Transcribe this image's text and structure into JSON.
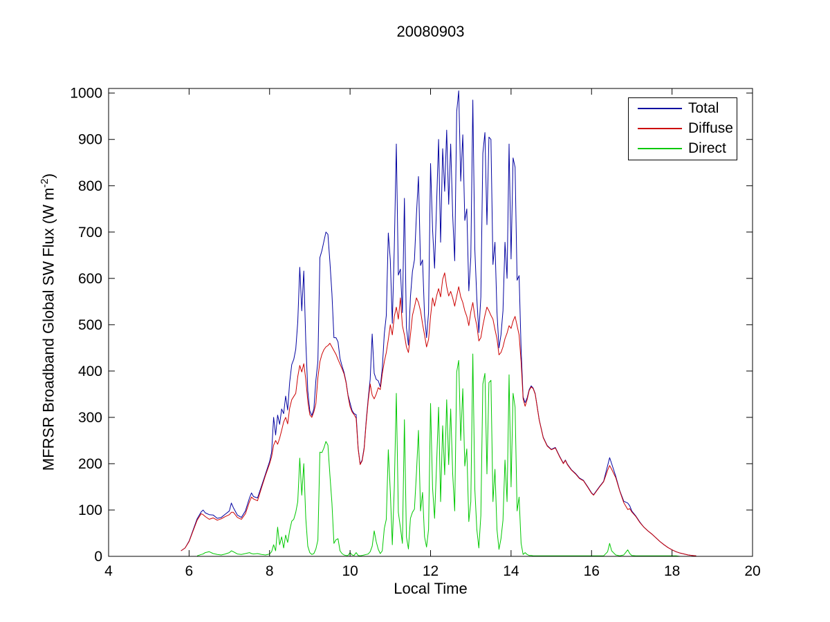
{
  "figure": {
    "background": "#ffffff",
    "axis_color": "#000000"
  },
  "chart_data": {
    "type": "line",
    "title": "20080903",
    "xlabel": "Local Time",
    "ylabel_prefix": "MFRSR Broadband Global SW Flux (W m",
    "ylabel_sup": "-2",
    "ylabel_suffix": ")",
    "xlim": [
      4,
      20
    ],
    "ylim": [
      0,
      1010
    ],
    "xticks": [
      4,
      6,
      8,
      10,
      12,
      14,
      16,
      18,
      20
    ],
    "yticks": [
      0,
      100,
      200,
      300,
      400,
      500,
      600,
      700,
      800,
      900,
      1000
    ],
    "grid": false,
    "legend_position": "top-right",
    "series_meta": [
      {
        "name": "Total",
        "color": "#0000A0"
      },
      {
        "name": "Diffuse",
        "color": "#CC0000"
      },
      {
        "name": "Direct",
        "color": "#00C800"
      }
    ],
    "columns": [
      "local_time_h",
      "total",
      "diffuse",
      "direct"
    ],
    "rows": [
      [
        5.8,
        12,
        12,
        null
      ],
      [
        5.9,
        18,
        18,
        null
      ],
      [
        6.0,
        33,
        32,
        null
      ],
      [
        6.1,
        57,
        55,
        null
      ],
      [
        6.2,
        81,
        78,
        1
      ],
      [
        6.3,
        96,
        92,
        4
      ],
      [
        6.35,
        100,
        90,
        5
      ],
      [
        6.4,
        94,
        86,
        8
      ],
      [
        6.5,
        90,
        80,
        10
      ],
      [
        6.6,
        89,
        83,
        6
      ],
      [
        6.7,
        82,
        78,
        4
      ],
      [
        6.8,
        84,
        81,
        3
      ],
      [
        6.9,
        91,
        86,
        5
      ],
      [
        7.0,
        98,
        90,
        8
      ],
      [
        7.05,
        115,
        95,
        12
      ],
      [
        7.1,
        105,
        95,
        10
      ],
      [
        7.2,
        89,
        84,
        5
      ],
      [
        7.3,
        84,
        80,
        4
      ],
      [
        7.4,
        98,
        92,
        6
      ],
      [
        7.5,
        126,
        118,
        8
      ],
      [
        7.55,
        137,
        128,
        6
      ],
      [
        7.6,
        129,
        124,
        5
      ],
      [
        7.7,
        126,
        120,
        6
      ],
      [
        7.8,
        152,
        148,
        4
      ],
      [
        7.9,
        178,
        175,
        3
      ],
      [
        8.0,
        205,
        200,
        5
      ],
      [
        8.05,
        225,
        215,
        10
      ],
      [
        8.1,
        300,
        240,
        25
      ],
      [
        8.15,
        262,
        250,
        12
      ],
      [
        8.2,
        305,
        242,
        63
      ],
      [
        8.25,
        285,
        255,
        25
      ],
      [
        8.3,
        318,
        272,
        42
      ],
      [
        8.35,
        308,
        290,
        18
      ],
      [
        8.4,
        346,
        300,
        46
      ],
      [
        8.45,
        316,
        286,
        30
      ],
      [
        8.5,
        376,
        320,
        56
      ],
      [
        8.55,
        414,
        338,
        76
      ],
      [
        8.6,
        425,
        345,
        80
      ],
      [
        8.65,
        447,
        352,
        95
      ],
      [
        8.7,
        506,
        388,
        118
      ],
      [
        8.75,
        624,
        412,
        212
      ],
      [
        8.8,
        530,
        398,
        132
      ],
      [
        8.85,
        616,
        416,
        200
      ],
      [
        8.9,
        464,
        382,
        82
      ],
      [
        8.95,
        357,
        335,
        22
      ],
      [
        9.0,
        314,
        306,
        8
      ],
      [
        9.05,
        304,
        300,
        4
      ],
      [
        9.1,
        318,
        312,
        6
      ],
      [
        9.15,
        380,
        330,
        16
      ],
      [
        9.2,
        421,
        386,
        35
      ],
      [
        9.25,
        645,
        420,
        225
      ],
      [
        9.3,
        660,
        436,
        224
      ],
      [
        9.35,
        680,
        446,
        234
      ],
      [
        9.4,
        700,
        452,
        248
      ],
      [
        9.45,
        695,
        455,
        240
      ],
      [
        9.5,
        635,
        460,
        175
      ],
      [
        9.55,
        567,
        452,
        115
      ],
      [
        9.6,
        472,
        444,
        28
      ],
      [
        9.65,
        472,
        436,
        36
      ],
      [
        9.7,
        463,
        425,
        38
      ],
      [
        9.75,
        427,
        415,
        12
      ],
      [
        9.8,
        411,
        405,
        6
      ],
      [
        9.85,
        397,
        394,
        3
      ],
      [
        9.9,
        377,
        375,
        2
      ],
      [
        9.95,
        348,
        346,
        2
      ],
      [
        10.0,
        331,
        323,
        8
      ],
      [
        10.05,
        315,
        312,
        3
      ],
      [
        10.1,
        308,
        306,
        2
      ],
      [
        10.15,
        306,
        298,
        8
      ],
      [
        10.2,
        234,
        232,
        2
      ],
      [
        10.25,
        199,
        198,
        1
      ],
      [
        10.3,
        208,
        206,
        2
      ],
      [
        10.35,
        235,
        232,
        3
      ],
      [
        10.4,
        292,
        288,
        4
      ],
      [
        10.45,
        340,
        335,
        5
      ],
      [
        10.5,
        382,
        372,
        10
      ],
      [
        10.55,
        480,
        348,
        22
      ],
      [
        10.6,
        395,
        340,
        55
      ],
      [
        10.65,
        382,
        350,
        32
      ],
      [
        10.7,
        379,
        364,
        15
      ],
      [
        10.75,
        366,
        360,
        6
      ],
      [
        10.8,
        406,
        394,
        12
      ],
      [
        10.85,
        480,
        420,
        60
      ],
      [
        10.9,
        520,
        440,
        80
      ],
      [
        10.95,
        698,
        468,
        230
      ],
      [
        11.0,
        640,
        500,
        140
      ],
      [
        11.05,
        503,
        478,
        25
      ],
      [
        11.1,
        668,
        518,
        150
      ],
      [
        11.15,
        890,
        538,
        352
      ],
      [
        11.2,
        607,
        512,
        95
      ],
      [
        11.25,
        620,
        558,
        62
      ],
      [
        11.3,
        526,
        498,
        28
      ],
      [
        11.35,
        773,
        478,
        295
      ],
      [
        11.4,
        494,
        452,
        42
      ],
      [
        11.45,
        456,
        440,
        16
      ],
      [
        11.5,
        560,
        478,
        82
      ],
      [
        11.55,
        615,
        520,
        95
      ],
      [
        11.6,
        640,
        538,
        102
      ],
      [
        11.65,
        738,
        558,
        180
      ],
      [
        11.7,
        820,
        548,
        272
      ],
      [
        11.75,
        628,
        530,
        98
      ],
      [
        11.8,
        640,
        502,
        138
      ],
      [
        11.85,
        520,
        478,
        42
      ],
      [
        11.9,
        472,
        452,
        20
      ],
      [
        11.95,
        526,
        468,
        58
      ],
      [
        12.0,
        848,
        518,
        330
      ],
      [
        12.05,
        706,
        558,
        148
      ],
      [
        12.1,
        622,
        540,
        82
      ],
      [
        12.15,
        760,
        562,
        198
      ],
      [
        12.2,
        900,
        578,
        322
      ],
      [
        12.25,
        678,
        560,
        118
      ],
      [
        12.3,
        880,
        598,
        282
      ],
      [
        12.35,
        788,
        612,
        176
      ],
      [
        12.4,
        920,
        582,
        338
      ],
      [
        12.45,
        760,
        562,
        198
      ],
      [
        12.5,
        890,
        572,
        318
      ],
      [
        12.55,
        736,
        558,
        178
      ],
      [
        12.6,
        638,
        540,
        98
      ],
      [
        12.65,
        960,
        562,
        398
      ],
      [
        12.7,
        1005,
        582,
        423
      ],
      [
        12.75,
        810,
        560,
        250
      ],
      [
        12.8,
        910,
        548,
        362
      ],
      [
        12.85,
        725,
        530,
        195
      ],
      [
        12.9,
        750,
        518,
        232
      ],
      [
        12.95,
        573,
        498,
        75
      ],
      [
        13.0,
        646,
        528,
        118
      ],
      [
        13.05,
        985,
        548,
        437
      ],
      [
        13.1,
        663,
        518,
        145
      ],
      [
        13.15,
        556,
        498,
        58
      ],
      [
        13.2,
        483,
        465,
        18
      ],
      [
        13.25,
        560,
        472,
        88
      ],
      [
        13.3,
        870,
        498,
        372
      ],
      [
        13.35,
        915,
        520,
        395
      ],
      [
        13.4,
        716,
        538,
        178
      ],
      [
        13.45,
        905,
        530,
        375
      ],
      [
        13.5,
        900,
        520,
        380
      ],
      [
        13.55,
        630,
        512,
        118
      ],
      [
        13.6,
        678,
        490,
        188
      ],
      [
        13.65,
        528,
        470,
        58
      ],
      [
        13.7,
        450,
        435,
        15
      ],
      [
        13.75,
        478,
        440,
        38
      ],
      [
        13.8,
        530,
        452,
        78
      ],
      [
        13.85,
        678,
        470,
        208
      ],
      [
        13.9,
        600,
        482,
        118
      ],
      [
        13.95,
        890,
        498,
        392
      ],
      [
        14.0,
        642,
        492,
        150
      ],
      [
        14.05,
        860,
        508,
        352
      ],
      [
        14.1,
        840,
        518,
        322
      ],
      [
        14.15,
        596,
        498,
        98
      ],
      [
        14.2,
        606,
        478,
        128
      ],
      [
        14.25,
        448,
        420,
        28
      ],
      [
        14.3,
        344,
        340,
        4
      ],
      [
        14.35,
        332,
        324,
        8
      ],
      [
        14.4,
        342,
        338,
        4
      ],
      [
        14.45,
        360,
        358,
        2
      ],
      [
        14.5,
        368,
        366,
        2
      ],
      [
        14.55,
        363,
        362,
        1
      ],
      [
        14.6,
        351,
        350,
        1
      ],
      [
        14.7,
        295,
        294,
        1
      ],
      [
        14.8,
        257,
        256,
        1
      ],
      [
        14.9,
        239,
        238,
        1
      ],
      [
        15.0,
        231,
        230,
        1
      ],
      [
        15.1,
        235,
        234,
        1
      ],
      [
        15.2,
        217,
        216,
        1
      ],
      [
        15.3,
        201,
        200,
        1
      ],
      [
        15.35,
        208,
        207,
        1
      ],
      [
        15.4,
        199,
        198,
        1
      ],
      [
        15.5,
        187,
        186,
        1
      ],
      [
        15.6,
        179,
        178,
        1
      ],
      [
        15.7,
        169,
        168,
        1
      ],
      [
        15.8,
        164,
        163,
        1
      ],
      [
        15.9,
        151,
        150,
        1
      ],
      [
        16.0,
        137,
        136,
        1
      ],
      [
        16.05,
        133,
        132,
        1
      ],
      [
        16.1,
        139,
        138,
        1
      ],
      [
        16.2,
        151,
        150,
        1
      ],
      [
        16.3,
        162,
        161,
        1
      ],
      [
        16.4,
        196,
        186,
        10
      ],
      [
        16.45,
        213,
        196,
        28
      ],
      [
        16.5,
        200,
        188,
        12
      ],
      [
        16.6,
        173,
        170,
        3
      ],
      [
        16.7,
        142,
        141,
        1
      ],
      [
        16.8,
        119,
        116,
        3
      ],
      [
        16.9,
        115,
        101,
        14
      ],
      [
        16.95,
        109,
        103,
        6
      ],
      [
        17.0,
        98,
        96,
        2
      ],
      [
        17.1,
        87,
        86,
        1
      ],
      [
        17.2,
        74,
        73,
        1
      ],
      [
        17.3,
        63,
        63,
        1
      ],
      [
        17.4,
        55,
        55,
        1
      ],
      [
        17.5,
        48,
        48,
        1
      ],
      [
        17.6,
        40,
        40,
        1
      ],
      [
        17.7,
        32,
        32,
        1
      ],
      [
        17.8,
        25,
        25,
        1
      ],
      [
        17.9,
        19,
        19,
        1
      ],
      [
        18.0,
        14,
        14,
        1
      ],
      [
        18.1,
        10,
        10,
        1
      ],
      [
        18.2,
        7,
        7,
        0
      ],
      [
        18.3,
        5,
        5,
        null
      ],
      [
        18.4,
        3,
        3,
        null
      ],
      [
        18.5,
        2,
        2,
        null
      ],
      [
        18.6,
        1,
        1,
        null
      ]
    ]
  }
}
